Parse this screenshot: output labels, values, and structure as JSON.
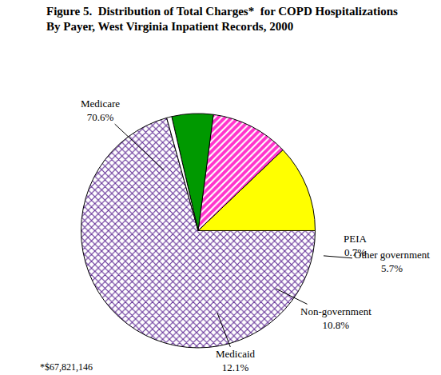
{
  "chart_data": {
    "type": "pie",
    "title": "Figure 5.  Distribution of Total Charges*  for COPD Hospitalizations\nBy Payer, West Virginia Inpatient Records, 2000",
    "categories": [
      "Medicare",
      "Medicaid",
      "Non-government",
      "Other government",
      "PEIA"
    ],
    "values": [
      70.6,
      12.1,
      10.8,
      5.7,
      0.7
    ],
    "value_labels": [
      "70.6%",
      "12.1%",
      "10.8%",
      "5.7%",
      "0.7%"
    ],
    "colors": [
      "#663399",
      "#ffff00",
      "#ff33cc",
      "#009900",
      "#ffffff"
    ],
    "data_labels": true,
    "annotations": [
      "*$67,821,146"
    ]
  }
}
